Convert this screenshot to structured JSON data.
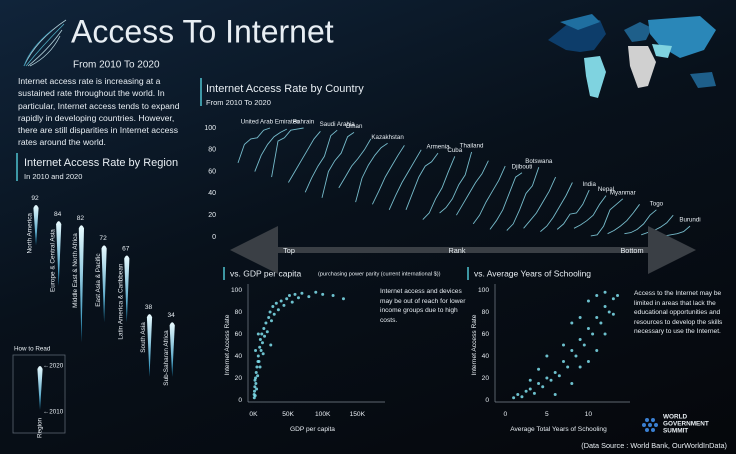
{
  "header": {
    "title": "Access To Internet",
    "subtitle": "From 2010 To 2020"
  },
  "intro": "Internet access rate is increasing at a sustained rate throughout the world. In particular, Internet access tends to expand rapidly in developing countries. However, there are still disparities in Internet access rates around the world.",
  "source": "(Data Source : World Bank, OurWorldInData)",
  "logo": [
    "WORLD",
    "GOVERNMENT",
    "SUMMIT"
  ],
  "chart_data": [
    {
      "type": "bar",
      "title": "Internet Access Rate by Region",
      "subtitle": "In 2010 and 2020",
      "legend_title": "How to Read",
      "x_label": "Region",
      "categories": [
        "North America",
        "Europe & Central Asia",
        "Middle East & North Africa",
        "East Asia & Pacific",
        "Latin America & Caribbean",
        "South Asia",
        "Sub-Saharan Africa"
      ],
      "series": [
        {
          "name": "←2020",
          "color": "#e9fbff",
          "values": [
            92,
            84,
            82,
            72,
            67,
            38,
            34
          ]
        },
        {
          "name": "←2010",
          "color": "#1b86b3",
          "values": [
            72,
            52,
            24,
            34,
            34,
            7,
            7
          ]
        }
      ]
    },
    {
      "type": "line",
      "title": "Internet Access Rate by Country",
      "subtitle": "From 2010 To 2020",
      "color": "#8ad9ea",
      "ylim": [
        0,
        100
      ],
      "yticks": [
        0,
        20,
        40,
        60,
        80,
        100
      ],
      "x_axis": {
        "start": "Top",
        "label": "Rank",
        "end": "Bottom"
      },
      "series": [
        {
          "name": "United Arab Emirates",
          "values": [
            68,
            85,
            90,
            91,
            98,
            100
          ]
        },
        {
          "values": [
            60,
            75,
            85,
            92,
            96,
            99
          ]
        },
        {
          "name": "Bahrain",
          "values": [
            55,
            88,
            91,
            98,
            99,
            100
          ]
        },
        {
          "values": [
            50,
            60,
            70,
            80,
            90,
            97
          ]
        },
        {
          "name": "Saudi Arabia",
          "values": [
            41,
            54,
            65,
            74,
            93,
            98
          ]
        },
        {
          "name": "Oman",
          "values": [
            36,
            60,
            70,
            77,
            92,
            96
          ]
        },
        {
          "values": [
            45,
            55,
            65,
            72,
            80,
            90
          ]
        },
        {
          "name": "Kazakhstan",
          "values": [
            32,
            54,
            66,
            75,
            82,
            86
          ]
        },
        {
          "values": [
            30,
            42,
            55,
            65,
            75,
            84
          ]
        },
        {
          "values": [
            25,
            38,
            50,
            60,
            70,
            80
          ]
        },
        {
          "name": "Armenia",
          "values": [
            25,
            40,
            55,
            65,
            69,
            77
          ]
        },
        {
          "name": "Cuba",
          "values": [
            16,
            22,
            35,
            45,
            60,
            74
          ]
        },
        {
          "name": "Thailand",
          "values": [
            22,
            27,
            35,
            48,
            57,
            78
          ]
        },
        {
          "values": [
            20,
            30,
            40,
            50,
            58,
            70
          ]
        },
        {
          "values": [
            12,
            20,
            32,
            42,
            52,
            65
          ]
        },
        {
          "name": "Djibouti",
          "values": [
            7,
            15,
            25,
            40,
            55,
            59
          ]
        },
        {
          "name": "Botswana",
          "values": [
            6,
            12,
            25,
            40,
            47,
            64
          ]
        },
        {
          "values": [
            8,
            15,
            22,
            32,
            42,
            55
          ]
        },
        {
          "values": [
            5,
            10,
            18,
            28,
            38,
            50
          ]
        },
        {
          "name": "India",
          "values": [
            7,
            12,
            21,
            22,
            30,
            43
          ]
        },
        {
          "name": "Nepal",
          "values": [
            8,
            11,
            15,
            20,
            30,
            38
          ]
        },
        {
          "name": "Myanmar",
          "values": [
            1,
            2,
            10,
            25,
            30,
            35
          ]
        },
        {
          "values": [
            3,
            6,
            10,
            15,
            22,
            30
          ]
        },
        {
          "name": "Togo",
          "values": [
            3,
            4,
            7,
            12,
            20,
            25
          ]
        },
        {
          "values": [
            2,
            4,
            6,
            9,
            13,
            20
          ]
        },
        {
          "name": "Burundi",
          "values": [
            1,
            1,
            2,
            3,
            5,
            10
          ]
        }
      ]
    },
    {
      "type": "scatter",
      "title": "vs. GDP per capita",
      "subtitle": "(purchasing power parity (current international $))",
      "x_label": "GDP per capita",
      "y_label": "Internet Access Rate",
      "annotation": "Internet access and devices may be out of reach for lower income groups due to high costs.",
      "color": "#7fe0ee",
      "xlim": [
        -5000,
        190000
      ],
      "ylim": [
        0,
        100
      ],
      "xticks": [
        {
          "value": 0,
          "label": "0K"
        },
        {
          "value": 50000,
          "label": "50K"
        },
        {
          "value": 100000,
          "label": "100K"
        },
        {
          "value": 150000,
          "label": "150K"
        }
      ],
      "yticks": [
        0,
        20,
        40,
        60,
        80,
        100
      ],
      "x": [
        1000,
        1500,
        2000,
        2500,
        3000,
        3500,
        4000,
        5000,
        6000,
        7000,
        8000,
        9000,
        10000,
        11000,
        12000,
        13000,
        15000,
        16000,
        18000,
        20000,
        22000,
        24000,
        26000,
        28000,
        30000,
        33000,
        36000,
        40000,
        44000,
        48000,
        52000,
        56000,
        60000,
        65000,
        70000,
        80000,
        90000,
        100000,
        115000,
        130000,
        1200,
        2200,
        4500,
        6500,
        9500,
        14000,
        3000,
        25000,
        7000
      ],
      "values": [
        5,
        8,
        12,
        4,
        20,
        15,
        25,
        30,
        22,
        40,
        35,
        48,
        55,
        45,
        60,
        52,
        65,
        58,
        70,
        62,
        75,
        80,
        72,
        85,
        78,
        88,
        82,
        90,
        86,
        92,
        95,
        89,
        96,
        93,
        97,
        94,
        98,
        96,
        95,
        92,
        2,
        18,
        10,
        35,
        30,
        42,
        45,
        50,
        60
      ]
    },
    {
      "type": "scatter",
      "title": "vs. Average Years of Schooling",
      "x_label": "Average Total Years of Schooling",
      "y_label": "Internet Access Rate",
      "annotation": "Access to the Internet may be limited in areas that lack the educational opportunities and resources to develop the skills necessary to use the Internet.",
      "color": "#7fe0ee",
      "xlim": [
        -1,
        15
      ],
      "ylim": [
        0,
        100
      ],
      "xticks": [
        0,
        5,
        10
      ],
      "yticks": [
        0,
        20,
        40,
        60,
        80,
        100
      ],
      "x": [
        1,
        1.5,
        2,
        2.5,
        3,
        3.5,
        4,
        4.5,
        5,
        5.5,
        6,
        6.5,
        7,
        7.5,
        8,
        8.5,
        9,
        9.5,
        10,
        10.5,
        11,
        11.5,
        12,
        12.5,
        13,
        13.5,
        6,
        8,
        9,
        10,
        11,
        12,
        7,
        9,
        10,
        11,
        12,
        5,
        4,
        3,
        8,
        13
      ],
      "values": [
        2,
        5,
        3,
        8,
        10,
        6,
        15,
        12,
        20,
        18,
        25,
        22,
        35,
        30,
        45,
        40,
        55,
        50,
        65,
        60,
        75,
        70,
        85,
        80,
        92,
        95,
        5,
        15,
        30,
        35,
        45,
        60,
        50,
        75,
        90,
        95,
        98,
        40,
        28,
        18,
        70,
        78
      ]
    }
  ]
}
